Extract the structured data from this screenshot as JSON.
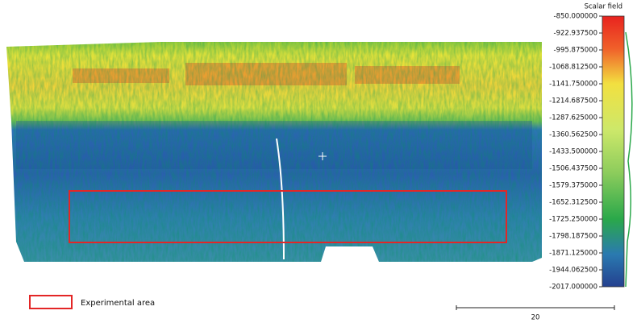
{
  "colorbar": {
    "title": "Scalar field",
    "range": [
      -850,
      -2017
    ],
    "ticks": [
      {
        "value": -850,
        "label": "-850.000000"
      },
      {
        "value": -922.9375,
        "label": "-922.937500"
      },
      {
        "value": -995.875,
        "label": "-995.875000"
      },
      {
        "value": -1068.8125,
        "label": "-1068.812500"
      },
      {
        "value": -1141.75,
        "label": "-1141.750000"
      },
      {
        "value": -1214.6875,
        "label": "-1214.687500"
      },
      {
        "value": -1287.625,
        "label": "-1287.625000"
      },
      {
        "value": -1360.5625,
        "label": "-1360.562500"
      },
      {
        "value": -1433.5,
        "label": "-1433.500000"
      },
      {
        "value": -1506.4375,
        "label": "-1506.437500"
      },
      {
        "value": -1579.375,
        "label": "-1579.375000"
      },
      {
        "value": -1652.3125,
        "label": "-1652.312500"
      },
      {
        "value": -1725.25,
        "label": "-1725.250000"
      },
      {
        "value": -1798.1875,
        "label": "-1798.187500"
      },
      {
        "value": -1871.125,
        "label": "-1871.125000"
      },
      {
        "value": -1944.0625,
        "label": "-1944.062500"
      },
      {
        "value": -2017,
        "label": "-2017.000000"
      }
    ]
  },
  "legend": {
    "label": "Experimental area"
  },
  "scale_bar": {
    "label": "20"
  }
}
